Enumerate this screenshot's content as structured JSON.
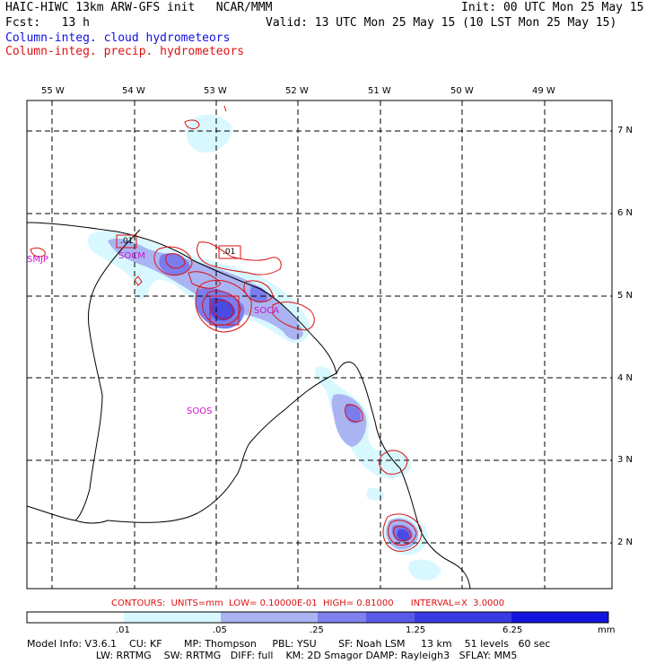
{
  "header": {
    "line1_left": "HAIC-HIWC 13km ARW-GFS init   NCAR/MMM",
    "line1_right": "Init: 00 UTC Mon 25 May 15",
    "line2_left": "Fcst:   13 h",
    "line2_right": "Valid: 13 UTC Mon 25 May 15 (10 LST Mon 25 May 15)",
    "legend_cloud": "Column-integ. cloud hydrometeors",
    "legend_precip": "Column-integ. precip. hydrometeors"
  },
  "map": {
    "lon_labels": [
      "55 W",
      "54 W",
      "53 W",
      "52 W",
      "51 W",
      "50 W",
      "49 W"
    ],
    "lat_labels": [
      "7 N",
      "6 N",
      "5 N",
      "4 N",
      "3 N",
      "2 N"
    ],
    "station_labels": [
      "SMJP",
      "SOCM",
      "SOCA",
      "SOOS"
    ],
    "contour_labels": [
      ".01",
      ".01"
    ]
  },
  "colors": {
    "cloud_light": "#d8f8ff",
    "cloud_mid": "#aab4f2",
    "cloud_dark": "#6c6cec",
    "cloud_darkest": "#3030e0",
    "precip_contour": "#dd1010",
    "station": "#d010d0",
    "grid": "#000000"
  },
  "contours_text": "CONTOURS:  UNITS=mm  LOW= 0.10000E-01  HIGH= 0.81000      INTERVAL=X  3.0000",
  "colorbar": {
    "tick_labels": [
      ".01",
      ".05",
      ".25",
      "1.25",
      "6.25"
    ],
    "unit": "mm",
    "colors": [
      "#ffffff",
      "#d8f8ff",
      "#aab4f2",
      "#8080ee",
      "#5a5ae8",
      "#3a3ae4",
      "#1414e0"
    ]
  },
  "footer": {
    "line1": "Model Info: V3.6.1    CU: KF       MP: Thompson     PBL: YSU       SF: Noah LSM     13 km    51 levels   60 sec",
    "line2": "                      LW: RRTMG    SW: RRTMG   DIFF: full    KM: 2D Smagor DAMP: Rayleigh3   SFLAY: MM5"
  }
}
